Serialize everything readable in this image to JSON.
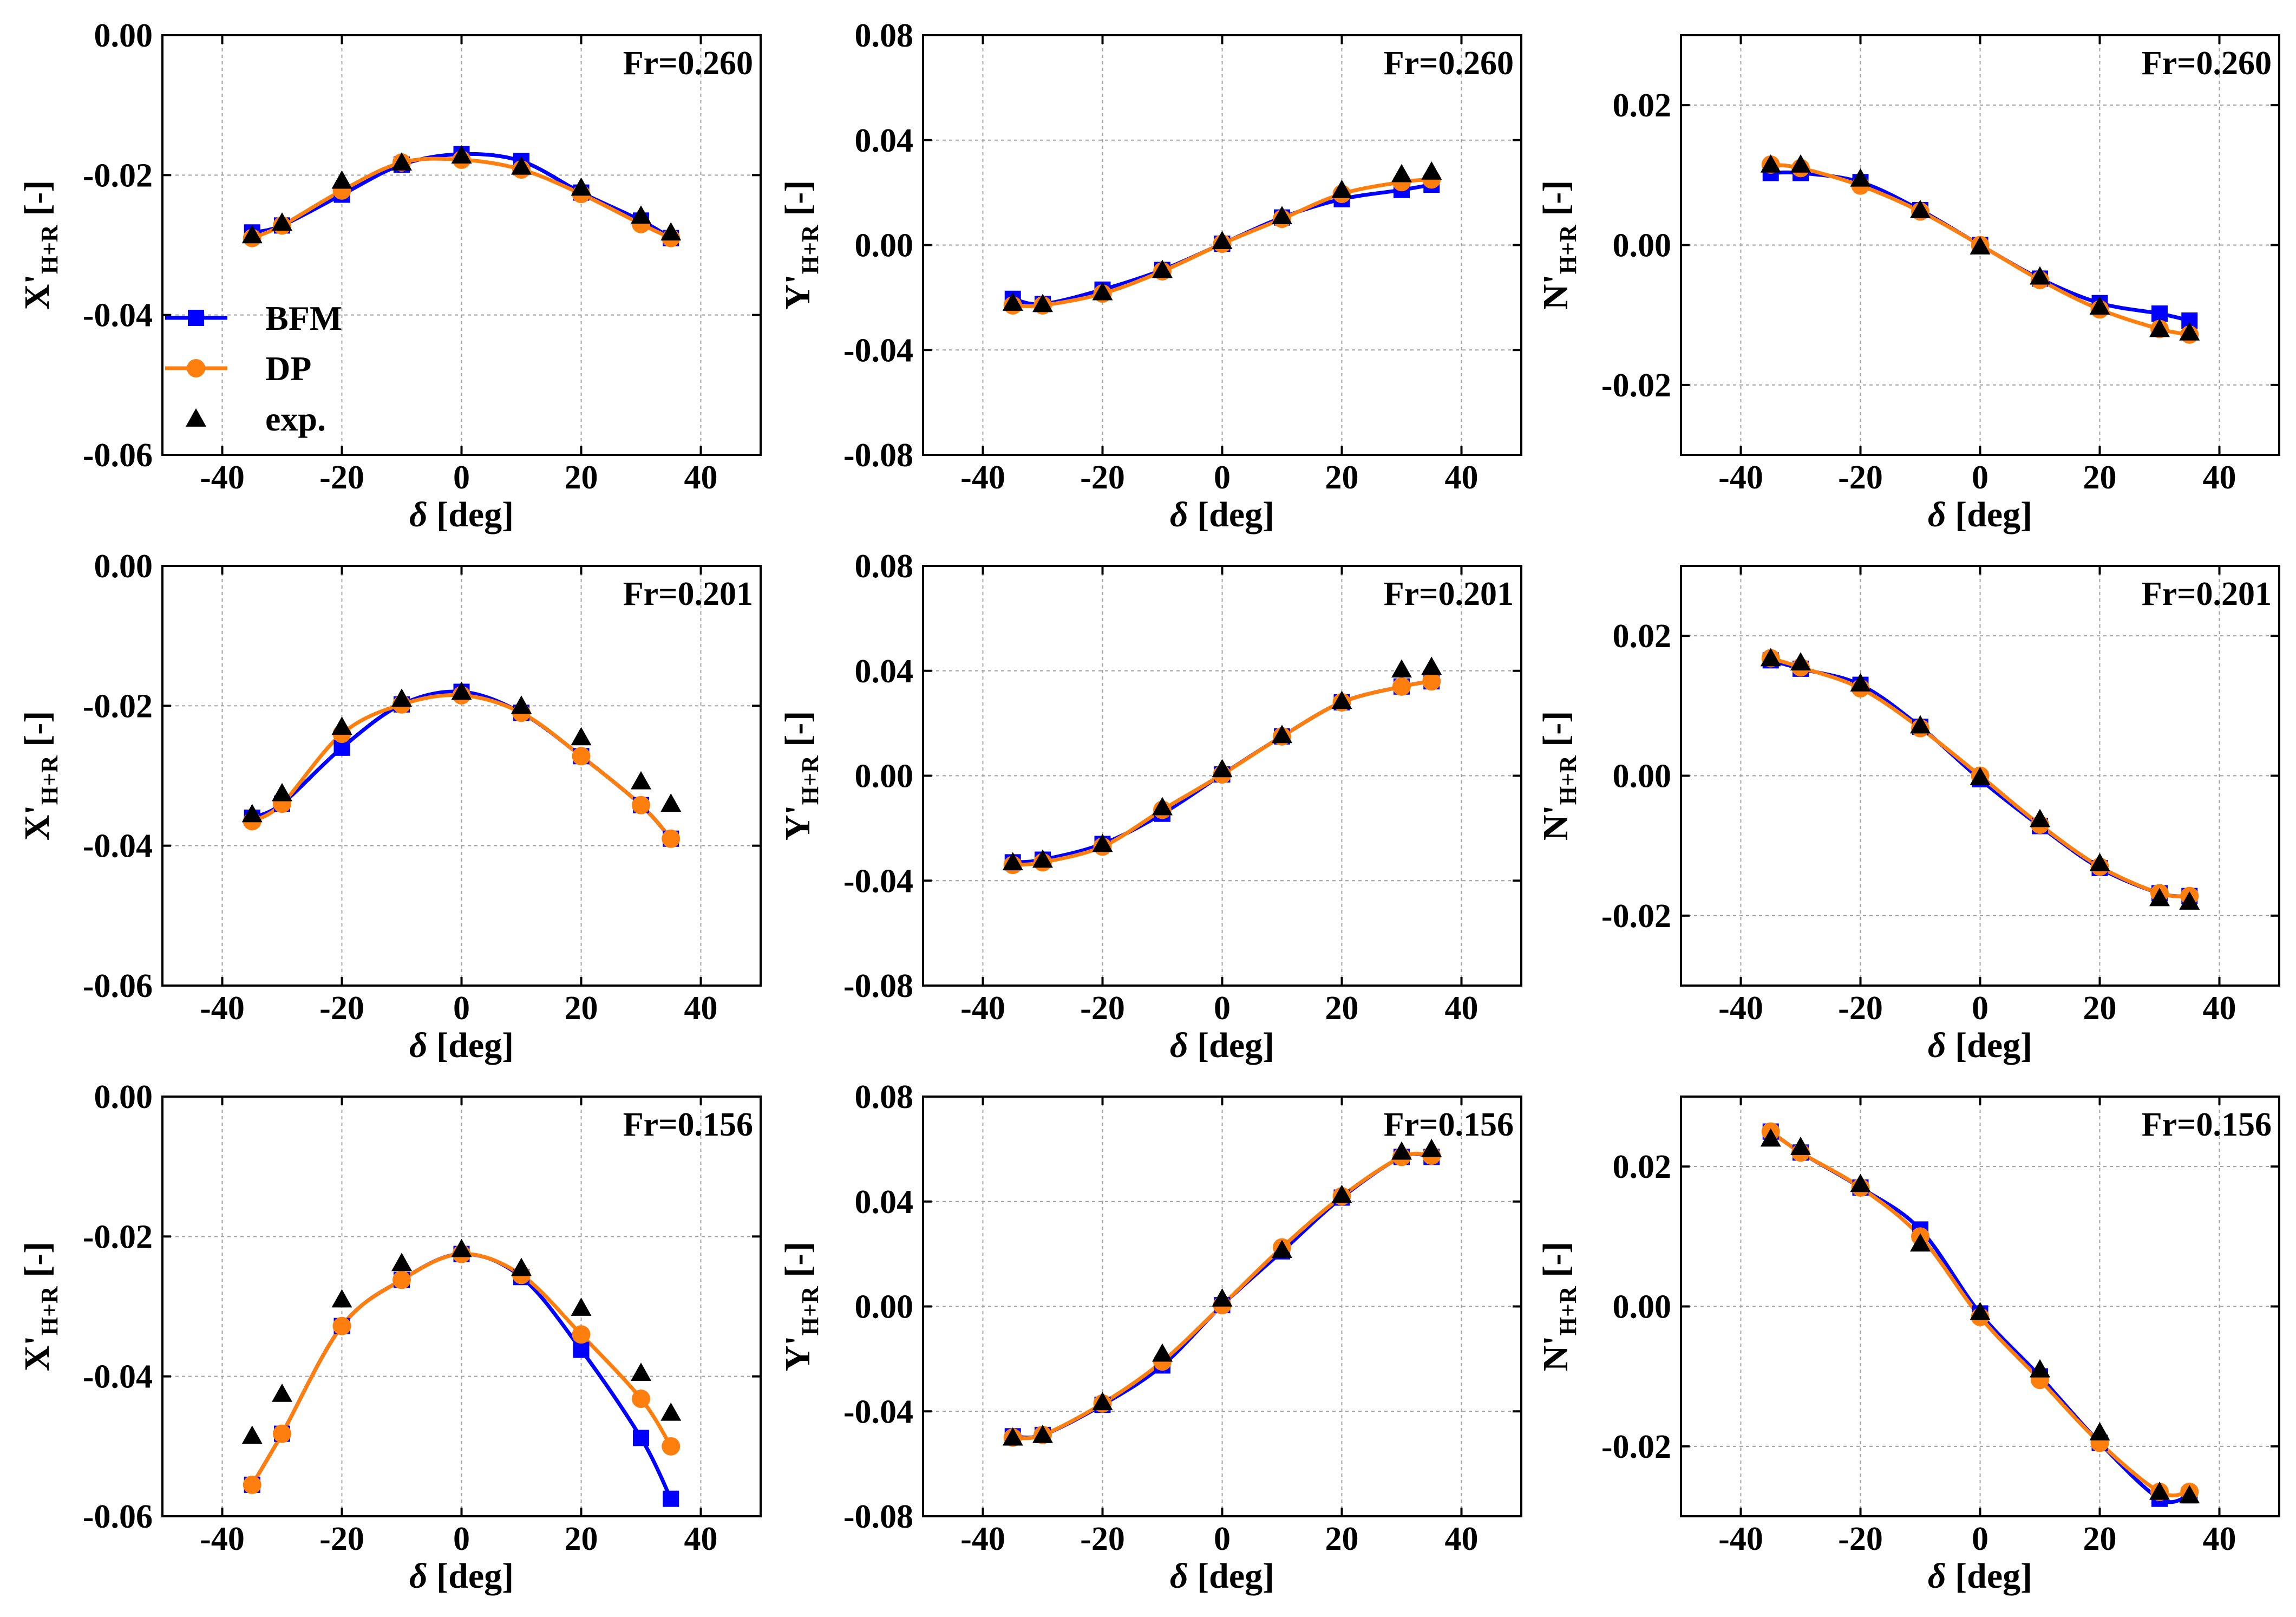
{
  "legend": {
    "items": [
      {
        "key": "BFM",
        "label": "BFM",
        "marker": "square",
        "color": "#0000ff"
      },
      {
        "key": "DP",
        "label": "DP",
        "marker": "circle",
        "color": "#ff7f0e"
      },
      {
        "key": "exp",
        "label": "exp.",
        "marker": "triangle",
        "color": "#000000"
      }
    ]
  },
  "colors": {
    "BFM": "#0000ff",
    "DP": "#ff7f0e",
    "exp": "#000000",
    "grid": "#a0a0a0"
  },
  "chart_data": [
    {
      "id": "x-fr0260",
      "type": "line",
      "fr_label": "Fr=0.260",
      "ylabel": {
        "base": "X'",
        "sub": "H+R",
        "unit": " [-]"
      },
      "xlabel": {
        "symbol": "δ",
        "unit": " [deg]"
      },
      "xlim": [
        -50,
        50
      ],
      "xticks": [
        -40,
        -20,
        0,
        20,
        40
      ],
      "xticklabels": [
        "-40",
        "-20",
        "0",
        "20",
        "40"
      ],
      "ylim": [
        -0.06,
        0.0
      ],
      "yticks": [
        -0.06,
        -0.04,
        -0.02,
        0.0
      ],
      "yticklabels": [
        "-0.06",
        "-0.04",
        "-0.02",
        "0.00"
      ],
      "grid": true,
      "show_legend": true,
      "series": [
        {
          "name": "BFM",
          "x": [
            -35,
            -30,
            -20,
            -10,
            0,
            10,
            20,
            30,
            35
          ],
          "y": [
            -0.0282,
            -0.0272,
            -0.0228,
            -0.0185,
            -0.017,
            -0.018,
            -0.0225,
            -0.0265,
            -0.029
          ]
        },
        {
          "name": "DP",
          "x": [
            -35,
            -30,
            -20,
            -10,
            0,
            10,
            20,
            30,
            35
          ],
          "y": [
            -0.029,
            -0.0272,
            -0.0222,
            -0.0182,
            -0.0178,
            -0.0192,
            -0.0227,
            -0.027,
            -0.029
          ]
        },
        {
          "name": "exp.",
          "x": [
            -35,
            -30,
            -20,
            -10,
            0,
            10,
            20,
            30,
            35
          ],
          "y": [
            -0.0286,
            -0.0268,
            -0.0208,
            -0.0182,
            -0.0172,
            -0.0188,
            -0.0218,
            -0.0258,
            -0.0282
          ]
        }
      ]
    },
    {
      "id": "y-fr0260",
      "type": "line",
      "fr_label": "Fr=0.260",
      "ylabel": {
        "base": "Y'",
        "sub": "H+R",
        "unit": " [-]"
      },
      "xlabel": {
        "symbol": "δ",
        "unit": " [deg]"
      },
      "xlim": [
        -50,
        50
      ],
      "xticks": [
        -40,
        -20,
        0,
        20,
        40
      ],
      "xticklabels": [
        "-40",
        "-20",
        "0",
        "20",
        "40"
      ],
      "ylim": [
        -0.08,
        0.08
      ],
      "yticks": [
        -0.08,
        -0.04,
        0.0,
        0.04,
        0.08
      ],
      "yticklabels": [
        "-0.08",
        "-0.04",
        "0.00",
        "0.04",
        "0.08"
      ],
      "grid": true,
      "show_legend": false,
      "series": [
        {
          "name": "BFM",
          "x": [
            -35,
            -30,
            -20,
            -10,
            0,
            10,
            20,
            30,
            35
          ],
          "y": [
            -0.0205,
            -0.0225,
            -0.017,
            -0.0095,
            0.0005,
            0.0105,
            0.0175,
            0.021,
            0.023
          ]
        },
        {
          "name": "DP",
          "x": [
            -35,
            -30,
            -20,
            -10,
            0,
            10,
            20,
            30,
            35
          ],
          "y": [
            -0.023,
            -0.023,
            -0.0185,
            -0.01,
            0.0005,
            0.01,
            0.0195,
            0.024,
            0.025
          ]
        },
        {
          "name": "exp.",
          "x": [
            -35,
            -30,
            -20,
            -10,
            0,
            10,
            20,
            30,
            35
          ],
          "y": [
            -0.022,
            -0.0225,
            -0.018,
            -0.0095,
            0.0015,
            0.011,
            0.021,
            0.027,
            0.028
          ]
        }
      ]
    },
    {
      "id": "n-fr0260",
      "type": "line",
      "fr_label": "Fr=0.260",
      "ylabel": {
        "base": "N'",
        "sub": "H+R",
        "unit": " [-]"
      },
      "xlabel": {
        "symbol": "δ",
        "unit": " [deg]"
      },
      "xlim": [
        -50,
        50
      ],
      "xticks": [
        -40,
        -20,
        0,
        20,
        40
      ],
      "xticklabels": [
        "-40",
        "-20",
        "0",
        "20",
        "40"
      ],
      "ylim": [
        -0.03,
        0.03
      ],
      "yticks": [
        -0.02,
        0.0,
        0.02
      ],
      "yticklabels": [
        "-0.02",
        "0.00",
        "0.02"
      ],
      "grid": true,
      "show_legend": false,
      "series": [
        {
          "name": "BFM",
          "x": [
            -35,
            -30,
            -20,
            -10,
            0,
            10,
            20,
            30,
            35
          ],
          "y": [
            0.0103,
            0.0103,
            0.009,
            0.005,
            0.0,
            -0.0048,
            -0.0083,
            -0.0098,
            -0.0108
          ]
        },
        {
          "name": "DP",
          "x": [
            -35,
            -30,
            -20,
            -10,
            0,
            10,
            20,
            30,
            35
          ],
          "y": [
            0.0115,
            0.011,
            0.0085,
            0.0048,
            0.0,
            -0.005,
            -0.0092,
            -0.012,
            -0.0128
          ]
        },
        {
          "name": "exp.",
          "x": [
            -35,
            -30,
            -20,
            -10,
            0,
            10,
            20,
            30,
            35
          ],
          "y": [
            0.0115,
            0.0115,
            0.0095,
            0.005,
            -0.0002,
            -0.0045,
            -0.0088,
            -0.012,
            -0.0125
          ]
        }
      ]
    },
    {
      "id": "x-fr0201",
      "type": "line",
      "fr_label": "Fr=0.201",
      "ylabel": {
        "base": "X'",
        "sub": "H+R",
        "unit": " [-]"
      },
      "xlabel": {
        "symbol": "δ",
        "unit": " [deg]"
      },
      "xlim": [
        -50,
        50
      ],
      "xticks": [
        -40,
        -20,
        0,
        20,
        40
      ],
      "xticklabels": [
        "-40",
        "-20",
        "0",
        "20",
        "40"
      ],
      "ylim": [
        -0.06,
        0.0
      ],
      "yticks": [
        -0.06,
        -0.04,
        -0.02,
        0.0
      ],
      "yticklabels": [
        "-0.06",
        "-0.04",
        "-0.02",
        "0.00"
      ],
      "grid": true,
      "show_legend": false,
      "series": [
        {
          "name": "BFM",
          "x": [
            -35,
            -30,
            -20,
            -10,
            0,
            10,
            20,
            30,
            35
          ],
          "y": [
            -0.036,
            -0.034,
            -0.026,
            -0.0198,
            -0.018,
            -0.021,
            -0.0272,
            -0.0342,
            -0.039
          ]
        },
        {
          "name": "DP",
          "x": [
            -35,
            -30,
            -20,
            -10,
            0,
            10,
            20,
            30,
            35
          ],
          "y": [
            -0.0365,
            -0.034,
            -0.024,
            -0.0198,
            -0.0185,
            -0.021,
            -0.0272,
            -0.0342,
            -0.039
          ]
        },
        {
          "name": "exp.",
          "x": [
            -35,
            -30,
            -20,
            -10,
            0,
            10,
            20,
            30,
            35
          ],
          "y": [
            -0.0355,
            -0.0325,
            -0.023,
            -0.019,
            -0.018,
            -0.02,
            -0.0245,
            -0.0308,
            -0.034
          ]
        }
      ]
    },
    {
      "id": "y-fr0201",
      "type": "line",
      "fr_label": "Fr=0.201",
      "ylabel": {
        "base": "Y'",
        "sub": "H+R",
        "unit": " [-]"
      },
      "xlabel": {
        "symbol": "δ",
        "unit": " [deg]"
      },
      "xlim": [
        -50,
        50
      ],
      "xticks": [
        -40,
        -20,
        0,
        20,
        40
      ],
      "xticklabels": [
        "-40",
        "-20",
        "0",
        "20",
        "40"
      ],
      "ylim": [
        -0.08,
        0.08
      ],
      "yticks": [
        -0.08,
        -0.04,
        0.0,
        0.04,
        0.08
      ],
      "yticklabels": [
        "-0.08",
        "-0.04",
        "0.00",
        "0.04",
        "0.08"
      ],
      "grid": true,
      "show_legend": false,
      "series": [
        {
          "name": "BFM",
          "x": [
            -35,
            -30,
            -20,
            -10,
            0,
            10,
            20,
            30,
            35
          ],
          "y": [
            -0.033,
            -0.032,
            -0.026,
            -0.0145,
            0.0005,
            0.015,
            0.028,
            0.034,
            0.036
          ]
        },
        {
          "name": "DP",
          "x": [
            -35,
            -30,
            -20,
            -10,
            0,
            10,
            20,
            30,
            35
          ],
          "y": [
            -0.034,
            -0.033,
            -0.027,
            -0.013,
            0.0005,
            0.015,
            0.028,
            0.034,
            0.036
          ]
        },
        {
          "name": "exp.",
          "x": [
            -35,
            -30,
            -20,
            -10,
            0,
            10,
            20,
            30,
            35
          ],
          "y": [
            -0.033,
            -0.032,
            -0.026,
            -0.012,
            0.0025,
            0.0155,
            0.0285,
            0.0405,
            0.0415
          ]
        }
      ]
    },
    {
      "id": "n-fr0201",
      "type": "line",
      "fr_label": "Fr=0.201",
      "ylabel": {
        "base": "N'",
        "sub": "H+R",
        "unit": " [-]"
      },
      "xlabel": {
        "symbol": "δ",
        "unit": " [deg]"
      },
      "xlim": [
        -50,
        50
      ],
      "xticks": [
        -40,
        -20,
        0,
        20,
        40
      ],
      "xticklabels": [
        "-40",
        "-20",
        "0",
        "20",
        "40"
      ],
      "ylim": [
        -0.03,
        0.03
      ],
      "yticks": [
        -0.02,
        0.0,
        0.02
      ],
      "yticklabels": [
        "-0.02",
        "0.00",
        "0.02"
      ],
      "grid": true,
      "show_legend": false,
      "series": [
        {
          "name": "BFM",
          "x": [
            -35,
            -30,
            -20,
            -10,
            0,
            10,
            20,
            30,
            35
          ],
          "y": [
            0.0165,
            0.0153,
            0.013,
            0.007,
            -0.0005,
            -0.0072,
            -0.0132,
            -0.0168,
            -0.0172
          ]
        },
        {
          "name": "DP",
          "x": [
            -35,
            -30,
            -20,
            -10,
            0,
            10,
            20,
            30,
            35
          ],
          "y": [
            0.0168,
            0.0155,
            0.0125,
            0.0068,
            0.0,
            -0.007,
            -0.013,
            -0.0168,
            -0.0172
          ]
        },
        {
          "name": "exp.",
          "x": [
            -35,
            -30,
            -20,
            -10,
            0,
            10,
            20,
            30,
            35
          ],
          "y": [
            0.0168,
            0.0162,
            0.0132,
            0.0072,
            -0.0002,
            -0.0062,
            -0.0125,
            -0.0175,
            -0.018
          ]
        }
      ]
    },
    {
      "id": "x-fr0156",
      "type": "line",
      "fr_label": "Fr=0.156",
      "ylabel": {
        "base": "X'",
        "sub": "H+R",
        "unit": " [-]"
      },
      "xlabel": {
        "symbol": "δ",
        "unit": " [deg]"
      },
      "xlim": [
        -50,
        50
      ],
      "xticks": [
        -40,
        -20,
        0,
        20,
        40
      ],
      "xticklabels": [
        "-40",
        "-20",
        "0",
        "20",
        "40"
      ],
      "ylim": [
        -0.06,
        0.0
      ],
      "yticks": [
        -0.06,
        -0.04,
        -0.02,
        0.0
      ],
      "yticklabels": [
        "-0.06",
        "-0.04",
        "-0.02",
        "0.00"
      ],
      "grid": true,
      "show_legend": false,
      "series": [
        {
          "name": "BFM",
          "x": [
            -35,
            -30,
            -20,
            -10,
            0,
            10,
            20,
            30,
            35
          ],
          "y": [
            -0.0555,
            -0.0482,
            -0.0328,
            -0.0262,
            -0.0225,
            -0.0258,
            -0.0362,
            -0.0488,
            -0.0575
          ]
        },
        {
          "name": "DP",
          "x": [
            -35,
            -30,
            -20,
            -10,
            0,
            10,
            20,
            30,
            35
          ],
          "y": [
            -0.0555,
            -0.0482,
            -0.0328,
            -0.0262,
            -0.0225,
            -0.0255,
            -0.034,
            -0.0432,
            -0.05
          ]
        },
        {
          "name": "exp.",
          "x": [
            -35,
            -30,
            -20,
            -10,
            0,
            10,
            20,
            30,
            35
          ],
          "y": [
            -0.0485,
            -0.0425,
            -0.029,
            -0.0238,
            -0.0218,
            -0.0245,
            -0.0302,
            -0.0395,
            -0.0452
          ]
        }
      ]
    },
    {
      "id": "y-fr0156",
      "type": "line",
      "fr_label": "Fr=0.156",
      "ylabel": {
        "base": "Y'",
        "sub": "H+R",
        "unit": " [-]"
      },
      "xlabel": {
        "symbol": "δ",
        "unit": " [deg]"
      },
      "xlim": [
        -50,
        50
      ],
      "xticks": [
        -40,
        -20,
        0,
        20,
        40
      ],
      "xticklabels": [
        "-40",
        "-20",
        "0",
        "20",
        "40"
      ],
      "ylim": [
        -0.08,
        0.08
      ],
      "yticks": [
        -0.08,
        -0.04,
        0.0,
        0.04,
        0.08
      ],
      "yticklabels": [
        "-0.08",
        "-0.04",
        "0.00",
        "0.04",
        "0.08"
      ],
      "grid": true,
      "show_legend": false,
      "series": [
        {
          "name": "BFM",
          "x": [
            -35,
            -30,
            -20,
            -10,
            0,
            10,
            20,
            30,
            35
          ],
          "y": [
            -0.0495,
            -0.049,
            -0.0375,
            -0.0225,
            0.0005,
            0.021,
            0.0415,
            0.057,
            0.057
          ]
        },
        {
          "name": "DP",
          "x": [
            -35,
            -30,
            -20,
            -10,
            0,
            10,
            20,
            30,
            35
          ],
          "y": [
            -0.05,
            -0.049,
            -0.037,
            -0.021,
            0.0005,
            0.0225,
            0.042,
            0.057,
            0.0575
          ]
        },
        {
          "name": "exp.",
          "x": [
            -35,
            -30,
            -20,
            -10,
            0,
            10,
            20,
            30,
            35
          ],
          "y": [
            -0.05,
            -0.049,
            -0.0365,
            -0.018,
            0.003,
            0.0215,
            0.0425,
            0.059,
            0.06
          ]
        }
      ]
    },
    {
      "id": "n-fr0156",
      "type": "line",
      "fr_label": "Fr=0.156",
      "ylabel": {
        "base": "N'",
        "sub": "H+R",
        "unit": " [-]"
      },
      "xlabel": {
        "symbol": "δ",
        "unit": " [deg]"
      },
      "xlim": [
        -50,
        50
      ],
      "xticks": [
        -40,
        -20,
        0,
        20,
        40
      ],
      "xticklabels": [
        "-40",
        "-20",
        "0",
        "20",
        "40"
      ],
      "ylim": [
        -0.03,
        0.03
      ],
      "yticks": [
        -0.02,
        0.0,
        0.02
      ],
      "yticklabels": [
        "-0.02",
        "0.00",
        "0.02"
      ],
      "grid": true,
      "show_legend": false,
      "series": [
        {
          "name": "BFM",
          "x": [
            -35,
            -30,
            -20,
            -10,
            0,
            10,
            20,
            30,
            35
          ],
          "y": [
            0.025,
            0.022,
            0.017,
            0.011,
            -0.001,
            -0.01,
            -0.0195,
            -0.0275,
            -0.027
          ]
        },
        {
          "name": "DP",
          "x": [
            -35,
            -30,
            -20,
            -10,
            0,
            10,
            20,
            30,
            35
          ],
          "y": [
            0.025,
            0.022,
            0.017,
            0.01,
            -0.0015,
            -0.0105,
            -0.0195,
            -0.0265,
            -0.0265
          ]
        },
        {
          "name": "exp.",
          "x": [
            -35,
            -30,
            -20,
            -10,
            0,
            10,
            20,
            30,
            35
          ],
          "y": [
            0.024,
            0.0228,
            0.0175,
            0.009,
            -0.0008,
            -0.009,
            -0.018,
            -0.0265,
            -0.027
          ]
        }
      ]
    }
  ]
}
